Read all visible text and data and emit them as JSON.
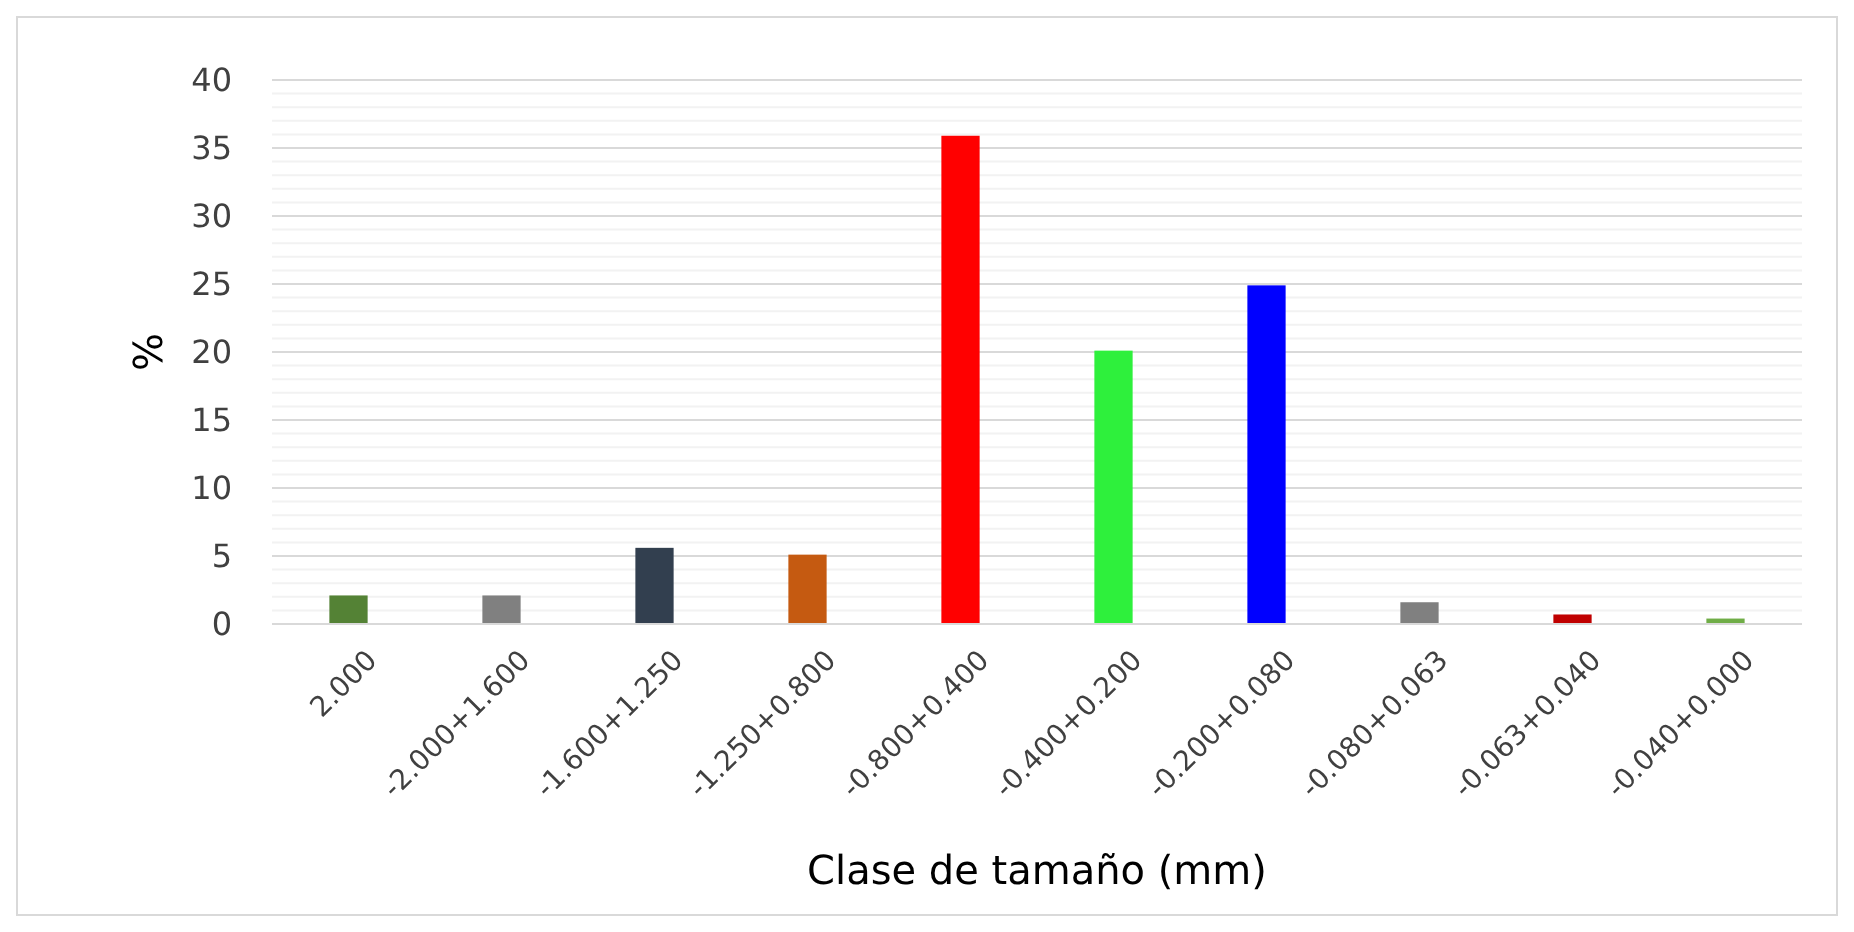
{
  "chart_data": {
    "type": "bar",
    "xlabel": "Clase de tamaño (mm)",
    "ylabel": "%",
    "categories": [
      "2.000",
      "-2.000+1.600",
      "-1.600+1.250",
      "-1.250+0.800",
      "-0.800+0.400",
      "-0.400+0.200",
      "-0.200+0.080",
      "-0.080+0.063",
      "-0.063+0.040",
      "-0.040+0.000"
    ],
    "values": [
      2.1,
      2.1,
      5.6,
      5.1,
      35.9,
      20.1,
      24.9,
      1.6,
      0.7,
      0.4
    ],
    "colors": [
      "#548235",
      "#808080",
      "#323f4f",
      "#c55a11",
      "#ff0000",
      "#2ef03c",
      "#0000ff",
      "#808080",
      "#c00000",
      "#70ad47"
    ],
    "ylim": [
      0,
      40
    ],
    "yticks": [
      0,
      {
        "value": 1,
        "label": null
      },
      {
        "value": 2,
        "label": null
      },
      {
        "value": 3,
        "label": null
      },
      {
        "value": 4,
        "label": null
      },
      5,
      {
        "value": 6,
        "label": null
      },
      {
        "value": 7,
        "label": null
      },
      {
        "value": 8,
        "label": null
      },
      {
        "value": 9,
        "label": null
      },
      10,
      {
        "value": 11,
        "label": null
      },
      {
        "value": 12,
        "label": null
      },
      {
        "value": 13,
        "label": null
      },
      {
        "value": 14,
        "label": null
      },
      15,
      {
        "value": 16,
        "label": null
      },
      {
        "value": 17,
        "label": null
      },
      {
        "value": 18,
        "label": null
      },
      {
        "value": 19,
        "label": null
      },
      20,
      {
        "value": 21,
        "label": null
      },
      {
        "value": 22,
        "label": null
      },
      {
        "value": 23,
        "label": null
      },
      {
        "value": 24,
        "label": null
      },
      25,
      {
        "value": 26,
        "label": null
      },
      {
        "value": 27,
        "label": null
      },
      {
        "value": 28,
        "label": null
      },
      {
        "value": 29,
        "label": null
      },
      30,
      {
        "value": 31,
        "label": null
      },
      {
        "value": 32,
        "label": null
      },
      {
        "value": 33,
        "label": null
      },
      {
        "value": 34,
        "label": null
      },
      35,
      {
        "value": 36,
        "label": null
      },
      {
        "value": 37,
        "label": null
      },
      {
        "value": 38,
        "label": null
      },
      {
        "value": 39,
        "label": null
      },
      40
    ],
    "grid": "y"
  }
}
